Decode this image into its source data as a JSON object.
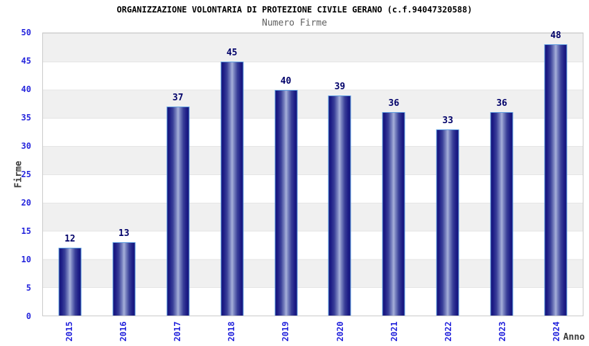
{
  "header": {
    "title": "ORGANIZZAZIONE VOLONTARIA DI PROTEZIONE CIVILE GERANO (c.f.94047320588)",
    "subtitle": "Numero Firme"
  },
  "chart_data": {
    "type": "bar",
    "title": "ORGANIZZAZIONE VOLONTARIA DI PROTEZIONE CIVILE GERANO (c.f.94047320588)",
    "subtitle": "Numero Firme",
    "categories": [
      "2015",
      "2016",
      "2017",
      "2018",
      "2019",
      "2020",
      "2021",
      "2022",
      "2023",
      "2024"
    ],
    "values": [
      12,
      13,
      37,
      45,
      40,
      39,
      36,
      33,
      36,
      48
    ],
    "xlabel": "Anno",
    "ylabel": "Firme",
    "ylim": [
      0,
      50
    ],
    "yticks": [
      0,
      5,
      10,
      15,
      20,
      25,
      30,
      35,
      40,
      45,
      50
    ],
    "grid": "alternating horizontal bands every 5 units",
    "legend": "none",
    "bar_value_labels": [
      "12",
      "13",
      "37",
      "45",
      "40",
      "39",
      "36",
      "33",
      "36",
      "48"
    ]
  },
  "colors": {
    "bar_dark": "#14147b",
    "bar_light": "#a7b0da",
    "bar_border": "#5b9ce0",
    "value_label": "#000069",
    "tick_label": "#2525dc",
    "band_gray": "#f0f0f0",
    "plot_border": "#c9c9c9",
    "subtitle_gray": "#5f5f5f",
    "axis_title": "#3a3a3a",
    "title_black": "#000000"
  }
}
